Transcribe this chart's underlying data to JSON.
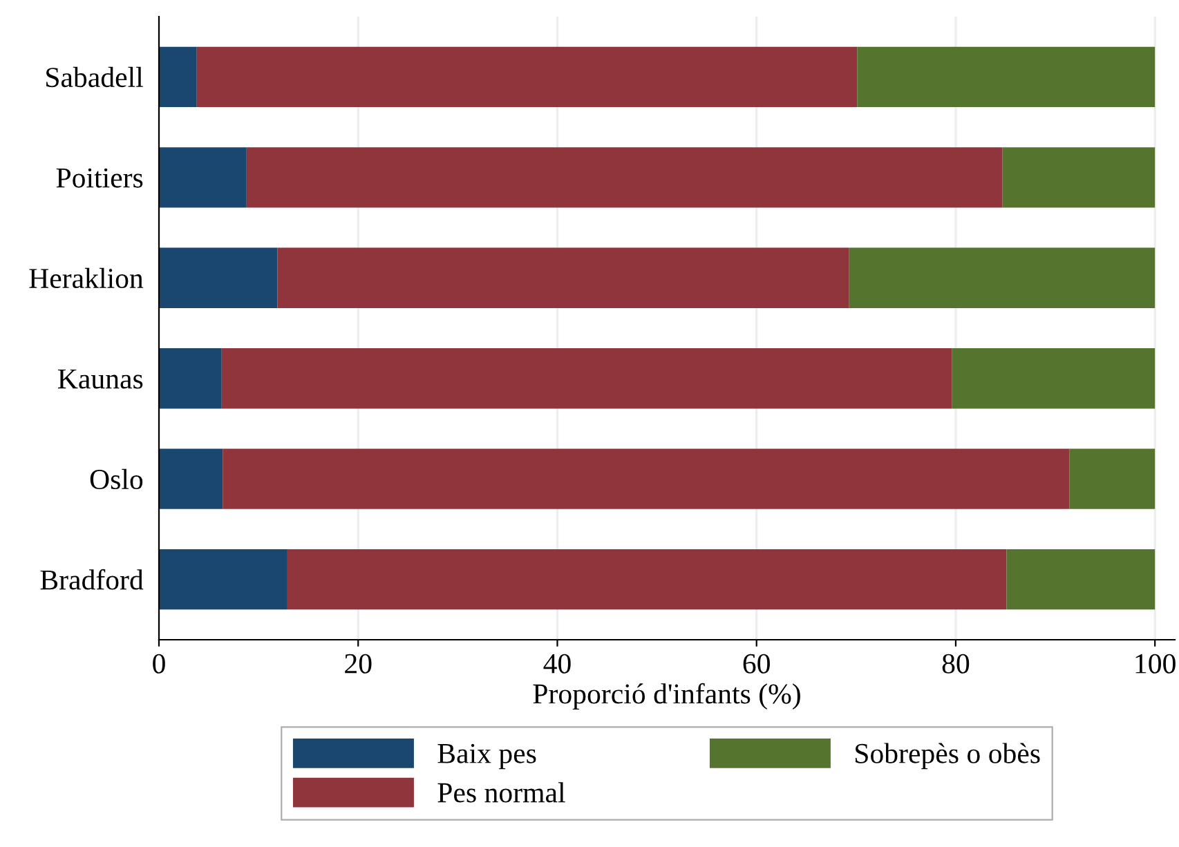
{
  "chart_data": {
    "type": "bar",
    "orientation": "horizontal",
    "stacked": true,
    "xlabel": "Proporció d'infants (%)",
    "categories": [
      "Sabadell",
      "Poitiers",
      "Heraklion",
      "Kaunas",
      "Oslo",
      "Bradford"
    ],
    "series": [
      {
        "name": "Baix pes",
        "color": "#1a476f",
        "values": [
          3.8,
          8.8,
          11.9,
          6.3,
          6.4,
          12.9
        ]
      },
      {
        "name": "Pes normal",
        "color": "#90353b",
        "values": [
          66.3,
          75.9,
          57.4,
          73.3,
          85.0,
          72.2
        ]
      },
      {
        "name": "Sobrepès o obès",
        "color": "#55752f",
        "values": [
          29.9,
          15.3,
          30.7,
          20.4,
          8.6,
          14.9
        ]
      }
    ],
    "xlim": [
      0,
      102
    ],
    "xticks": [
      0,
      20,
      40,
      60,
      80,
      100
    ],
    "grid": "x",
    "legend": "bottom"
  }
}
